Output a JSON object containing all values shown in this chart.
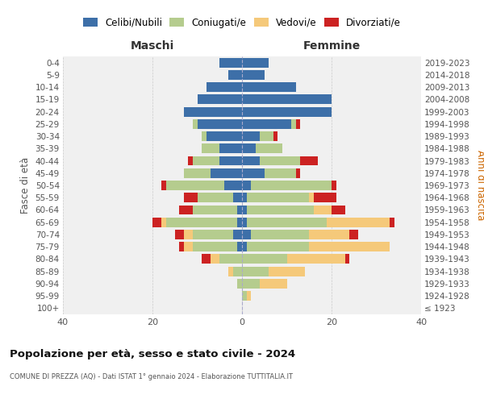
{
  "age_groups": [
    "100+",
    "95-99",
    "90-94",
    "85-89",
    "80-84",
    "75-79",
    "70-74",
    "65-69",
    "60-64",
    "55-59",
    "50-54",
    "45-49",
    "40-44",
    "35-39",
    "30-34",
    "25-29",
    "20-24",
    "15-19",
    "10-14",
    "5-9",
    "0-4"
  ],
  "birth_years": [
    "≤ 1923",
    "1924-1928",
    "1929-1933",
    "1934-1938",
    "1939-1943",
    "1944-1948",
    "1949-1953",
    "1954-1958",
    "1959-1963",
    "1964-1968",
    "1969-1973",
    "1974-1978",
    "1979-1983",
    "1984-1988",
    "1989-1993",
    "1994-1998",
    "1999-2003",
    "2004-2008",
    "2009-2013",
    "2014-2018",
    "2019-2023"
  ],
  "colors": {
    "celibi": "#3d6fa8",
    "coniugati": "#b5cc8e",
    "vedovi": "#f5c97a",
    "divorziati": "#cc2222"
  },
  "maschi": {
    "celibi": [
      0,
      0,
      0,
      0,
      0,
      1,
      2,
      1,
      1,
      2,
      4,
      7,
      5,
      5,
      8,
      10,
      13,
      10,
      8,
      3,
      5
    ],
    "coniugati": [
      0,
      0,
      1,
      2,
      5,
      10,
      9,
      16,
      10,
      8,
      13,
      6,
      6,
      4,
      1,
      1,
      0,
      0,
      0,
      0,
      0
    ],
    "vedovi": [
      0,
      0,
      0,
      1,
      2,
      2,
      2,
      1,
      0,
      0,
      0,
      0,
      0,
      0,
      0,
      0,
      0,
      0,
      0,
      0,
      0
    ],
    "divorziati": [
      0,
      0,
      0,
      0,
      2,
      1,
      2,
      2,
      3,
      3,
      1,
      0,
      1,
      0,
      0,
      0,
      0,
      0,
      0,
      0,
      0
    ]
  },
  "femmine": {
    "celibi": [
      0,
      0,
      0,
      0,
      0,
      1,
      2,
      1,
      1,
      1,
      2,
      5,
      4,
      3,
      4,
      11,
      20,
      20,
      12,
      5,
      6
    ],
    "coniugati": [
      0,
      1,
      4,
      6,
      10,
      14,
      13,
      18,
      15,
      14,
      18,
      7,
      9,
      6,
      3,
      1,
      0,
      0,
      0,
      0,
      0
    ],
    "vedovi": [
      0,
      1,
      6,
      8,
      13,
      18,
      9,
      14,
      4,
      1,
      0,
      0,
      0,
      0,
      0,
      0,
      0,
      0,
      0,
      0,
      0
    ],
    "divorziati": [
      0,
      0,
      0,
      0,
      1,
      0,
      2,
      1,
      3,
      5,
      1,
      1,
      4,
      0,
      1,
      1,
      0,
      0,
      0,
      0,
      0
    ]
  },
  "title": "Popolazione per età, sesso e stato civile - 2024",
  "subtitle": "COMUNE DI PREZZA (AQ) - Dati ISTAT 1° gennaio 2024 - Elaborazione TUTTITALIA.IT",
  "xlabel_left": "Maschi",
  "xlabel_right": "Femmine",
  "ylabel_left": "Fasce di età",
  "ylabel_right": "Anni di nascita",
  "legend_labels": [
    "Celibi/Nubili",
    "Coniugati/e",
    "Vedovi/e",
    "Divorziati/e"
  ],
  "xlim": 40,
  "bg_color": "#f0f0f0"
}
